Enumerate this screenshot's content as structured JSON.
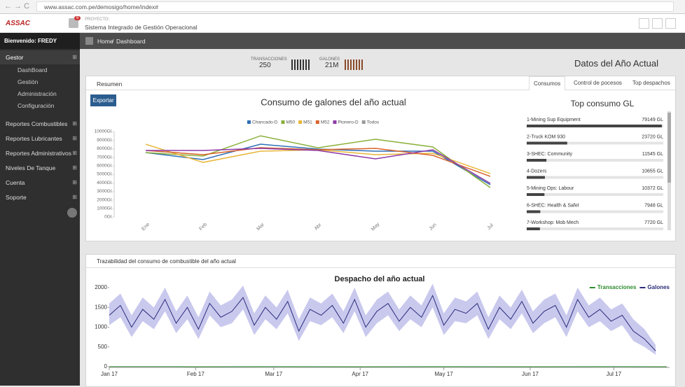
{
  "browser": {
    "url": "www.assac.com.pe/demosigo/home/index#"
  },
  "header": {
    "logo": "ASSAC",
    "badge": "6",
    "project_label": "PROYECTO:",
    "title": "Sistema Integrado de Gestión Operacional"
  },
  "sidebar": {
    "welcome": "Bienvenido: FREDY",
    "items": [
      {
        "label": "Gestor",
        "children": [
          "DashBoard",
          "Gestión",
          "Administración",
          "Configuración"
        ]
      },
      {
        "label": "Reportes Combustibles"
      },
      {
        "label": "Reportes Lubricantes"
      },
      {
        "label": "Reportes Administrativos"
      },
      {
        "label": "Niveles De Tanque"
      },
      {
        "label": "Cuenta"
      },
      {
        "label": "Soporte"
      }
    ]
  },
  "breadcrumb": [
    "Home",
    "Dashboard"
  ],
  "stats": [
    {
      "label": "TRANSACCIONES",
      "value": 250
    },
    {
      "label": "GALONES",
      "value": "21M"
    }
  ],
  "page_title": "Datos del Año Actual",
  "resumen": {
    "title": "Resumen",
    "button": "Exportar",
    "tabs": [
      "Consumos",
      "Control de pocesos",
      "Top despachos"
    ]
  },
  "trazabilidad": {
    "title": "Trazabilidad del consumo de combustible del año actual"
  },
  "chart_data": [
    {
      "type": "line",
      "title": "Consumo de galones del año actual",
      "categories": [
        "Ene",
        "Feb",
        "Mar",
        "Abr",
        "May",
        "Jun",
        "Jul"
      ],
      "series": [
        {
          "name": "Chancado-D",
          "color": "#2f6fb5",
          "values": [
            7540,
            6720,
            8520,
            7950,
            7700,
            7700,
            3770
          ]
        },
        {
          "name": "M50",
          "color": "#8ab03a",
          "values": [
            7540,
            7130,
            9500,
            8110,
            9100,
            8200,
            3440
          ]
        },
        {
          "name": "M51",
          "color": "#e8b53a",
          "values": [
            8520,
            6390,
            7700,
            7870,
            7300,
            7460,
            5080
          ]
        },
        {
          "name": "M52",
          "color": "#d8622a",
          "values": [
            7790,
            7300,
            8110,
            7870,
            8030,
            7210,
            4750
          ]
        },
        {
          "name": "Pionero-D",
          "color": "#8e3aa8",
          "values": [
            7790,
            7790,
            8030,
            7790,
            6800,
            7870,
            3930
          ]
        },
        {
          "name": "Todos",
          "color": "#9a9a9a",
          "values": [
            null,
            null,
            null,
            null,
            null,
            null,
            null
          ]
        }
      ],
      "ylim": [
        0,
        10000
      ],
      "yticks": [
        {
          "value": 0,
          "label": "0Gl."
        },
        {
          "value": 1000,
          "label": "1000Gl."
        },
        {
          "value": 2000,
          "label": "2000Gl."
        },
        {
          "value": 3000,
          "label": "3000Gl."
        },
        {
          "value": 4000,
          "label": "4000Gl."
        },
        {
          "value": 5000,
          "label": "5000Gl."
        },
        {
          "value": 6000,
          "label": "6000Gl."
        },
        {
          "value": 7000,
          "label": "7000Gl."
        },
        {
          "value": 8000,
          "label": "8000Gl."
        },
        {
          "value": 9000,
          "label": "9000Gl."
        },
        {
          "value": 10000,
          "label": "10000Gl."
        }
      ],
      "grid": false
    },
    {
      "type": "hbar",
      "title": "Top consumo GL",
      "color": "#444444",
      "categories": [
        "1-Mining Sup Equipment",
        "2-Truck KOM 930",
        "3-SHEC: Community",
        "4-Dozers",
        "5-Mining Ops: Labour",
        "6-SHEC: Health & Safet",
        "7-Workshop: Mob Mech"
      ],
      "values": [
        79149,
        23720,
        11545,
        10655,
        10372,
        7948,
        7720
      ],
      "value_labels": [
        "79149 GL",
        "23720 GL",
        "11545 GL",
        "10655 GL",
        "10372 GL",
        "7948 GL",
        "7720 GL"
      ],
      "xlim": [
        0,
        80000
      ]
    },
    {
      "type": "line",
      "title": "Despacho del año actual",
      "legend": "top-right",
      "series": [
        {
          "name": "Transacciones",
          "color": "#2e8b2e",
          "x": [
            0,
            30,
            60,
            90,
            120,
            150,
            180,
            200
          ],
          "values": [
            2,
            1,
            2,
            1,
            2,
            1,
            2,
            1
          ]
        },
        {
          "name": "Galones",
          "color": "#2b2b7a",
          "band_color": "#c9c9ee",
          "x": [
            0,
            4,
            8,
            12,
            16,
            20,
            24,
            28,
            32,
            36,
            40,
            44,
            48,
            52,
            56,
            60,
            64,
            68,
            72,
            76,
            80,
            84,
            88,
            92,
            96,
            100,
            104,
            108,
            112,
            116,
            120,
            124,
            128,
            132,
            136,
            140,
            144,
            148,
            152,
            156,
            160,
            164,
            168,
            172,
            176,
            180,
            184,
            188,
            192,
            196
          ],
          "values": [
            1300,
            1550,
            1000,
            1450,
            1200,
            1700,
            1100,
            1500,
            950,
            1600,
            1250,
            1400,
            1750,
            1050,
            1500,
            1200,
            1650,
            900,
            1450,
            1300,
            1550,
            1100,
            1700,
            1000,
            1400,
            1600,
            1150,
            1500,
            1250,
            1800,
            1050,
            1450,
            1350,
            1600,
            950,
            1500,
            1200,
            1650,
            1100,
            1400,
            1550,
            1000,
            1700,
            1250,
            1450,
            1150,
            1300,
            900,
            700,
            400
          ],
          "lower": [
            1050,
            1250,
            750,
            1150,
            950,
            1400,
            850,
            1200,
            700,
            1300,
            1000,
            1100,
            1450,
            800,
            1200,
            950,
            1350,
            650,
            1150,
            1050,
            1250,
            850,
            1400,
            750,
            1100,
            1300,
            900,
            1200,
            1000,
            1500,
            800,
            1150,
            1100,
            1300,
            700,
            1200,
            950,
            1350,
            850,
            1100,
            1250,
            750,
            1400,
            1000,
            1150,
            900,
            1050,
            650,
            500,
            300
          ],
          "upper": [
            1600,
            1850,
            1300,
            1750,
            1500,
            2000,
            1400,
            1800,
            1250,
            1900,
            1550,
            1700,
            2050,
            1350,
            1800,
            1500,
            1950,
            1200,
            1750,
            1600,
            1850,
            1400,
            2000,
            1300,
            1700,
            1900,
            1450,
            1800,
            1550,
            2100,
            1350,
            1750,
            1650,
            1900,
            1250,
            1800,
            1500,
            1950,
            1400,
            1700,
            1850,
            1300,
            2000,
            1550,
            1750,
            1450,
            1600,
            1200,
            950,
            550
          ]
        }
      ],
      "xlim": [
        0,
        201
      ],
      "xticks": [
        {
          "value": 0,
          "label": "Jan 17"
        },
        {
          "value": 31,
          "label": "Feb 17"
        },
        {
          "value": 59,
          "label": "Mar 17"
        },
        {
          "value": 90,
          "label": "Apr 17"
        },
        {
          "value": 120,
          "label": "May 17"
        },
        {
          "value": 151,
          "label": "Jun 17"
        },
        {
          "value": 181,
          "label": "Jul 17"
        }
      ],
      "ylim": [
        0,
        2000
      ],
      "yticks": [
        0,
        500,
        1000,
        1500,
        2000
      ],
      "grid": false
    }
  ]
}
